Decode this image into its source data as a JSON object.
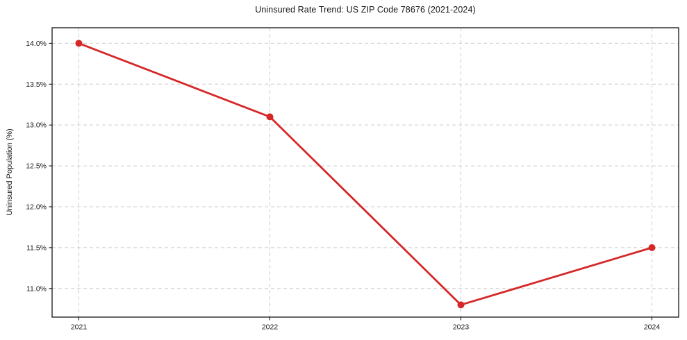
{
  "page": {
    "background": "#ffffff"
  },
  "chart_data": {
    "type": "line",
    "title": "Uninsured Rate Trend: US ZIP Code 78676 (2021-2024)",
    "xlabel": "",
    "ylabel": "Uninsured Population (%)",
    "x": [
      2021,
      2022,
      2023,
      2024
    ],
    "x_tick_labels": [
      "2021",
      "2022",
      "2023",
      "2024"
    ],
    "series": [
      {
        "name": "uninsured-rate",
        "values": [
          14.0,
          13.1,
          10.8,
          11.5
        ],
        "color": "#d62728",
        "marker": "circle",
        "marker_radius": 5,
        "line_width": 2.8
      }
    ],
    "y_ticks": [
      11.0,
      11.5,
      12.0,
      12.5,
      13.0,
      13.5,
      14.0
    ],
    "y_tick_labels": [
      "11.0%",
      "11.5%",
      "12.0%",
      "12.5%",
      "13.0%",
      "13.5%",
      "14.0%"
    ],
    "xlim": [
      2020.86,
      2024.14
    ],
    "ylim": [
      10.65,
      14.19
    ],
    "grid": true,
    "grid_style": "dashed",
    "grid_color": "#cccccc",
    "axis_color": "#000000",
    "tick_color": "#000000",
    "legend_position": "none"
  }
}
